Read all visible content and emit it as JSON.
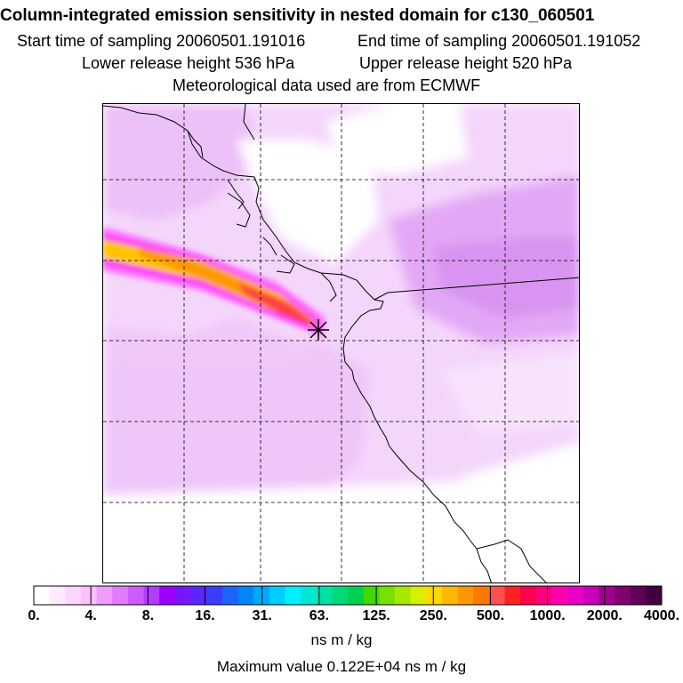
{
  "header": {
    "title": "Column-integrated emission sensitivity in nested domain for c130_060501",
    "start_label": "Start time of sampling 20060501.191016",
    "end_label": "End time of sampling 20060501.191052",
    "lower_label": "Lower release height  536 hPa",
    "upper_label": "Upper release height  520 hPa",
    "met_label": "Meteorological data used are from ECMWF"
  },
  "map": {
    "release_marker": "release-point-star-icon",
    "plume_colors": [
      "#ff00ff",
      "#ff77ff",
      "#ffc400",
      "#ff9900",
      "#ff3f3f"
    ]
  },
  "colorbar": {
    "tick_labels": [
      "0.",
      "4.",
      "8.",
      "16.",
      "31.",
      "63.",
      "125.",
      "250.",
      "500.",
      "1000.",
      "2000.",
      "4000."
    ],
    "colors": [
      "#ffffff",
      "#ffeaff",
      "#ffd4ff",
      "#ffbfff",
      "#f29bff",
      "#e27bff",
      "#cc5cff",
      "#b53cff",
      "#9b00ff",
      "#7a14ff",
      "#5a28ff",
      "#3c3cff",
      "#1e62ff",
      "#0084ff",
      "#00a8ff",
      "#00ccff",
      "#00f0ff",
      "#00e8d4",
      "#00e0a8",
      "#00d87c",
      "#00d050",
      "#40d800",
      "#78e000",
      "#a8e800",
      "#d8f000",
      "#ffd800",
      "#ffb800",
      "#ff9800",
      "#ff7800",
      "#ff5050",
      "#ff2020",
      "#ff0050",
      "#ff0080",
      "#ff00b0",
      "#e800c8",
      "#c800b8",
      "#a00090",
      "#800070",
      "#600058",
      "#400040"
    ],
    "units": "ns m / kg"
  },
  "footer": {
    "max_value_label": "Maximum value  0.122E+04 ns m / kg"
  }
}
